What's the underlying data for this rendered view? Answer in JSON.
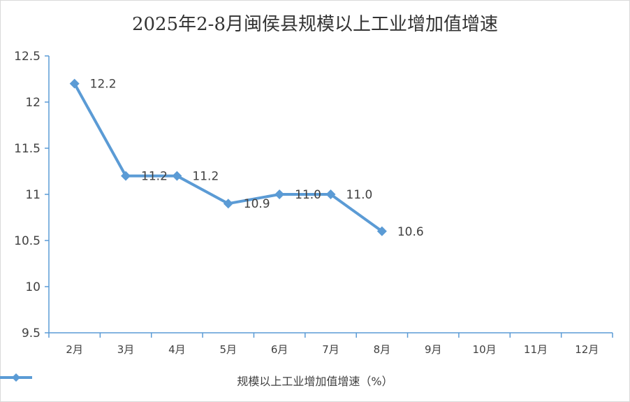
{
  "chart_data": {
    "type": "line",
    "title": "2025年2-8月闽侯县规模以上工业增加值增速",
    "categories": [
      "2月",
      "3月",
      "4月",
      "5月",
      "6月",
      "7月",
      "8月",
      "9月",
      "10月",
      "11月",
      "12月"
    ],
    "series": [
      {
        "name": "规模以上工业增加值增速（%）",
        "values": [
          12.2,
          11.2,
          11.2,
          10.9,
          11.0,
          11.0,
          10.6,
          null,
          null,
          null,
          null
        ],
        "data_labels": [
          "12.2",
          "11.2",
          "11.2",
          "10.9",
          "11.0",
          "11.0",
          "10.6",
          null,
          null,
          null,
          null
        ],
        "color": "#5b9bd5",
        "marker": "diamond"
      }
    ],
    "ylim": [
      9.5,
      12.5
    ],
    "yticks": [
      9.5,
      10,
      10.5,
      11,
      11.5,
      12,
      12.5
    ],
    "ytick_labels": [
      "9.5",
      "10",
      "10.5",
      "11",
      "11.5",
      "12",
      "12.5"
    ],
    "xlabel": "",
    "ylabel": "",
    "grid": false,
    "legend_position": "bottom"
  },
  "colors": {
    "axis": "#5b9bd5",
    "text": "#404040"
  }
}
